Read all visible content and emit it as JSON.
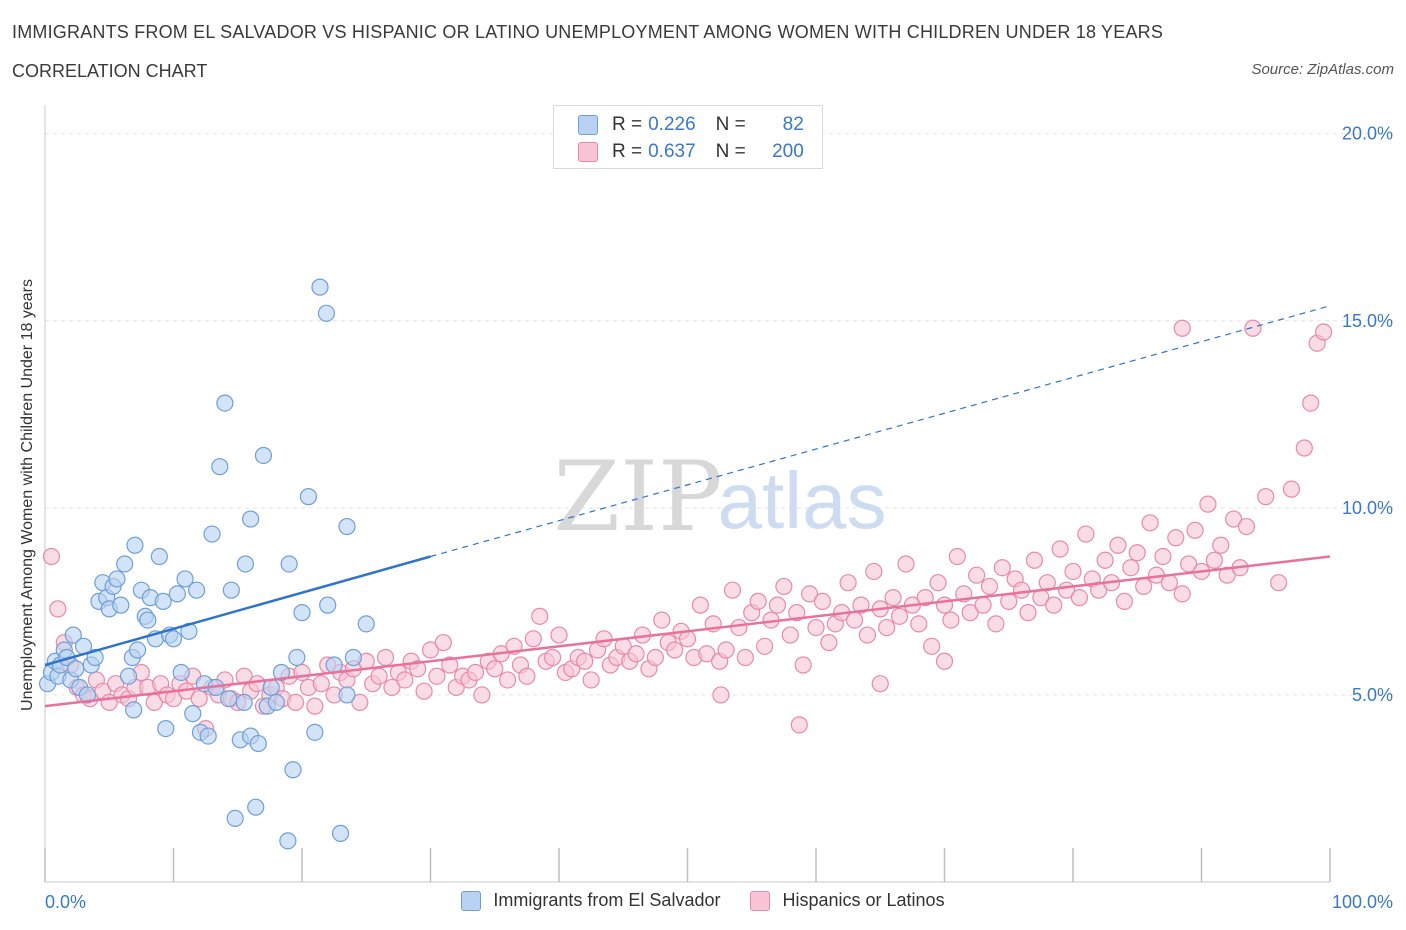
{
  "header": {
    "title": "IMMIGRANTS FROM EL SALVADOR VS HISPANIC OR LATINO UNEMPLOYMENT AMONG WOMEN WITH CHILDREN UNDER 18 YEARS",
    "subtitle": "CORRELATION CHART",
    "source": "Source: ZipAtlas.com"
  },
  "legend_top": {
    "rows": [
      {
        "r_label": "R =",
        "r_value": "0.226",
        "n_label": "N =",
        "n_value": "82"
      },
      {
        "r_label": "R =",
        "r_value": "0.637",
        "n_label": "N =",
        "n_value": "200"
      }
    ]
  },
  "watermark": {
    "zip": "ZIP",
    "atlas": "atlas"
  },
  "colors": {
    "blue_fill": "#b8d2f4",
    "blue_stroke": "#6f9fd8",
    "blue_line": "#2f74cc",
    "pink_fill": "#f7c5d5",
    "pink_stroke": "#e88aa8",
    "pink_line": "#e8729a",
    "tick_text": "#3a78c8",
    "grid": "#e3e3e3"
  },
  "chart_data": {
    "type": "scatter",
    "title": "IMMIGRANTS FROM EL SALVADOR VS HISPANIC OR LATINO UNEMPLOYMENT AMONG WOMEN WITH CHILDREN UNDER 18 YEARS",
    "subtitle": "CORRELATION CHART",
    "xlabel": "",
    "ylabel": "Unemployment Among Women with Children Under 18 years",
    "xlim": [
      0,
      100
    ],
    "ylim": [
      0,
      20.5
    ],
    "x_tick_labels": [
      "0.0%",
      "100.0%"
    ],
    "y_ticks": [
      5,
      10,
      15,
      20
    ],
    "y_tick_labels": [
      "5.0%",
      "10.0%",
      "15.0%",
      "20.0%"
    ],
    "grid": true,
    "legend_position": "bottom",
    "series": [
      {
        "name": "Immigrants from El Salvador",
        "R": 0.226,
        "N": 82,
        "trend": {
          "x0": 0,
          "y0": 5.8,
          "x1": 30,
          "y1": 8.7,
          "dashed_to_x": 100,
          "dashed_to_y": 15.4
        },
        "points": [
          [
            0.2,
            5.3
          ],
          [
            0.5,
            5.6
          ],
          [
            0.8,
            5.9
          ],
          [
            1.0,
            5.5
          ],
          [
            1.2,
            5.8
          ],
          [
            1.5,
            6.2
          ],
          [
            1.7,
            6.0
          ],
          [
            2.0,
            5.4
          ],
          [
            2.2,
            6.6
          ],
          [
            2.4,
            5.7
          ],
          [
            2.7,
            5.2
          ],
          [
            3.0,
            6.3
          ],
          [
            3.3,
            5.0
          ],
          [
            3.6,
            5.8
          ],
          [
            3.9,
            6.0
          ],
          [
            4.2,
            7.5
          ],
          [
            4.5,
            8.0
          ],
          [
            4.8,
            7.6
          ],
          [
            5.0,
            7.3
          ],
          [
            5.3,
            7.9
          ],
          [
            5.6,
            8.1
          ],
          [
            5.9,
            7.4
          ],
          [
            6.2,
            8.5
          ],
          [
            6.5,
            5.5
          ],
          [
            6.8,
            6.0
          ],
          [
            6.9,
            4.6
          ],
          [
            7.0,
            9.0
          ],
          [
            7.2,
            6.2
          ],
          [
            7.5,
            7.8
          ],
          [
            7.8,
            7.1
          ],
          [
            8.0,
            7.0
          ],
          [
            8.2,
            7.6
          ],
          [
            8.6,
            6.5
          ],
          [
            8.9,
            8.7
          ],
          [
            9.2,
            7.5
          ],
          [
            9.4,
            4.1
          ],
          [
            9.7,
            6.6
          ],
          [
            10.0,
            6.5
          ],
          [
            10.3,
            7.7
          ],
          [
            10.6,
            5.6
          ],
          [
            10.9,
            8.1
          ],
          [
            11.2,
            6.7
          ],
          [
            11.5,
            4.5
          ],
          [
            11.8,
            7.8
          ],
          [
            12.1,
            4.0
          ],
          [
            12.4,
            5.3
          ],
          [
            12.7,
            3.9
          ],
          [
            13.0,
            9.3
          ],
          [
            13.3,
            5.2
          ],
          [
            13.6,
            11.1
          ],
          [
            14.0,
            12.8
          ],
          [
            14.3,
            4.9
          ],
          [
            14.5,
            7.8
          ],
          [
            14.8,
            1.7
          ],
          [
            15.2,
            3.8
          ],
          [
            15.5,
            4.8
          ],
          [
            15.6,
            8.5
          ],
          [
            16.0,
            3.9
          ],
          [
            16.4,
            2.0
          ],
          [
            16.6,
            3.7
          ],
          [
            17.0,
            11.4
          ],
          [
            17.3,
            4.7
          ],
          [
            17.6,
            5.2
          ],
          [
            18.0,
            4.8
          ],
          [
            18.4,
            5.6
          ],
          [
            16.0,
            9.7
          ],
          [
            18.9,
            1.1
          ],
          [
            19.0,
            8.5
          ],
          [
            19.3,
            3.0
          ],
          [
            19.6,
            6.0
          ],
          [
            20.0,
            7.2
          ],
          [
            20.5,
            10.3
          ],
          [
            21.0,
            4.0
          ],
          [
            21.4,
            15.9
          ],
          [
            21.9,
            15.2
          ],
          [
            22.0,
            7.4
          ],
          [
            22.5,
            5.8
          ],
          [
            23.0,
            1.3
          ],
          [
            23.5,
            9.5
          ],
          [
            24.0,
            6.0
          ],
          [
            25.0,
            6.9
          ],
          [
            23.5,
            5.0
          ]
        ]
      },
      {
        "name": "Hispanics or Latinos",
        "R": 0.637,
        "N": 200,
        "trend": {
          "x0": 0,
          "y0": 4.7,
          "x1": 100,
          "y1": 8.7
        },
        "points": [
          [
            0.5,
            8.7
          ],
          [
            1.0,
            7.3
          ],
          [
            1.5,
            6.4
          ],
          [
            2.0,
            5.8
          ],
          [
            2.5,
            5.2
          ],
          [
            3.0,
            5.0
          ],
          [
            3.5,
            4.9
          ],
          [
            4.0,
            5.4
          ],
          [
            4.5,
            5.1
          ],
          [
            5.0,
            4.8
          ],
          [
            5.5,
            5.3
          ],
          [
            6.0,
            5.0
          ],
          [
            6.5,
            4.9
          ],
          [
            7.0,
            5.2
          ],
          [
            7.5,
            5.6
          ],
          [
            8.0,
            5.2
          ],
          [
            8.5,
            4.8
          ],
          [
            9.0,
            5.3
          ],
          [
            9.5,
            5.0
          ],
          [
            10.0,
            4.9
          ],
          [
            10.5,
            5.3
          ],
          [
            11.0,
            5.1
          ],
          [
            11.5,
            5.5
          ],
          [
            12.0,
            4.9
          ],
          [
            12.5,
            4.1
          ],
          [
            13.0,
            5.2
          ],
          [
            13.5,
            5.0
          ],
          [
            14.0,
            5.4
          ],
          [
            14.5,
            4.9
          ],
          [
            15.0,
            4.8
          ],
          [
            15.5,
            5.5
          ],
          [
            16.0,
            5.1
          ],
          [
            16.5,
            5.3
          ],
          [
            17.0,
            4.7
          ],
          [
            17.5,
            5.0
          ],
          [
            18.0,
            5.2
          ],
          [
            18.5,
            4.9
          ],
          [
            19.0,
            5.5
          ],
          [
            19.5,
            4.8
          ],
          [
            20.0,
            5.6
          ],
          [
            20.5,
            5.2
          ],
          [
            21.0,
            4.7
          ],
          [
            21.5,
            5.3
          ],
          [
            22.0,
            5.8
          ],
          [
            22.5,
            5.0
          ],
          [
            23.0,
            5.6
          ],
          [
            23.5,
            5.4
          ],
          [
            24.0,
            5.7
          ],
          [
            24.5,
            4.8
          ],
          [
            25.0,
            5.9
          ],
          [
            25.5,
            5.3
          ],
          [
            26.0,
            5.5
          ],
          [
            26.5,
            6.0
          ],
          [
            27.0,
            5.2
          ],
          [
            27.5,
            5.6
          ],
          [
            28.0,
            5.4
          ],
          [
            28.5,
            5.9
          ],
          [
            29.0,
            5.7
          ],
          [
            29.5,
            5.1
          ],
          [
            30.0,
            6.2
          ],
          [
            30.5,
            5.5
          ],
          [
            31.0,
            6.4
          ],
          [
            31.5,
            5.8
          ],
          [
            32.0,
            5.2
          ],
          [
            32.5,
            5.5
          ],
          [
            33.0,
            5.4
          ],
          [
            33.5,
            5.6
          ],
          [
            34.0,
            5.0
          ],
          [
            34.5,
            5.9
          ],
          [
            35.0,
            5.7
          ],
          [
            35.5,
            6.1
          ],
          [
            36.0,
            5.4
          ],
          [
            36.5,
            6.3
          ],
          [
            37.0,
            5.8
          ],
          [
            37.5,
            5.5
          ],
          [
            38.0,
            6.5
          ],
          [
            38.5,
            7.1
          ],
          [
            39.0,
            5.9
          ],
          [
            39.5,
            6.0
          ],
          [
            40.0,
            6.6
          ],
          [
            40.5,
            5.6
          ],
          [
            41.0,
            5.7
          ],
          [
            41.5,
            6.0
          ],
          [
            42.0,
            5.9
          ],
          [
            42.5,
            5.4
          ],
          [
            43.0,
            6.2
          ],
          [
            43.5,
            6.5
          ],
          [
            44.0,
            5.8
          ],
          [
            44.5,
            6.0
          ],
          [
            45.0,
            6.3
          ],
          [
            45.5,
            5.9
          ],
          [
            46.0,
            6.1
          ],
          [
            46.5,
            6.6
          ],
          [
            47.0,
            5.7
          ],
          [
            47.5,
            6.0
          ],
          [
            48.0,
            7.0
          ],
          [
            48.5,
            6.4
          ],
          [
            49.0,
            6.2
          ],
          [
            49.5,
            6.7
          ],
          [
            50.0,
            6.5
          ],
          [
            50.5,
            6.0
          ],
          [
            51.0,
            7.4
          ],
          [
            51.5,
            6.1
          ],
          [
            52.0,
            6.9
          ],
          [
            52.5,
            5.9
          ],
          [
            53.0,
            6.2
          ],
          [
            53.5,
            7.8
          ],
          [
            54.0,
            6.8
          ],
          [
            54.5,
            6.0
          ],
          [
            55.0,
            7.2
          ],
          [
            55.5,
            7.5
          ],
          [
            56.0,
            6.3
          ],
          [
            56.5,
            7.0
          ],
          [
            57.0,
            7.4
          ],
          [
            57.5,
            7.9
          ],
          [
            58.0,
            6.6
          ],
          [
            58.5,
            7.2
          ],
          [
            59.0,
            5.8
          ],
          [
            59.5,
            7.7
          ],
          [
            60.0,
            6.8
          ],
          [
            60.5,
            7.5
          ],
          [
            61.0,
            6.4
          ],
          [
            61.5,
            6.9
          ],
          [
            62.0,
            7.2
          ],
          [
            62.5,
            8.0
          ],
          [
            63.0,
            7.0
          ],
          [
            63.5,
            7.4
          ],
          [
            64.0,
            6.6
          ],
          [
            64.5,
            8.3
          ],
          [
            65.0,
            7.3
          ],
          [
            65.5,
            6.8
          ],
          [
            66.0,
            7.6
          ],
          [
            66.5,
            7.1
          ],
          [
            67.0,
            8.5
          ],
          [
            67.5,
            7.4
          ],
          [
            68.0,
            6.9
          ],
          [
            68.5,
            7.6
          ],
          [
            69.0,
            6.3
          ],
          [
            69.5,
            8.0
          ],
          [
            70.0,
            7.4
          ],
          [
            70.5,
            7.0
          ],
          [
            71.0,
            8.7
          ],
          [
            71.5,
            7.7
          ],
          [
            72.0,
            7.2
          ],
          [
            72.5,
            8.2
          ],
          [
            73.0,
            7.4
          ],
          [
            73.5,
            7.9
          ],
          [
            74.0,
            6.9
          ],
          [
            74.5,
            8.4
          ],
          [
            75.0,
            7.5
          ],
          [
            75.5,
            8.1
          ],
          [
            76.0,
            7.8
          ],
          [
            76.5,
            7.2
          ],
          [
            77.0,
            8.6
          ],
          [
            77.5,
            7.6
          ],
          [
            78.0,
            8.0
          ],
          [
            78.5,
            7.4
          ],
          [
            79.0,
            8.9
          ],
          [
            79.5,
            7.8
          ],
          [
            80.0,
            8.3
          ],
          [
            80.5,
            7.6
          ],
          [
            81.0,
            9.3
          ],
          [
            81.5,
            8.1
          ],
          [
            82.0,
            7.8
          ],
          [
            82.5,
            8.6
          ],
          [
            83.0,
            8.0
          ],
          [
            83.5,
            9.0
          ],
          [
            84.0,
            7.5
          ],
          [
            84.5,
            8.4
          ],
          [
            85.0,
            8.8
          ],
          [
            85.5,
            7.9
          ],
          [
            86.0,
            9.6
          ],
          [
            86.5,
            8.2
          ],
          [
            87.0,
            8.7
          ],
          [
            87.5,
            8.0
          ],
          [
            88.0,
            9.2
          ],
          [
            88.5,
            7.7
          ],
          [
            89.0,
            8.5
          ],
          [
            89.5,
            9.4
          ],
          [
            90.0,
            8.3
          ],
          [
            90.5,
            10.1
          ],
          [
            91.0,
            8.6
          ],
          [
            91.5,
            9.0
          ],
          [
            92.0,
            8.2
          ],
          [
            92.5,
            9.7
          ],
          [
            93.0,
            8.4
          ],
          [
            93.5,
            9.5
          ],
          [
            94.0,
            14.8
          ],
          [
            95.0,
            10.3
          ],
          [
            96.0,
            8.0
          ],
          [
            97.0,
            10.5
          ],
          [
            98.0,
            11.6
          ],
          [
            99.0,
            14.4
          ],
          [
            99.5,
            14.7
          ],
          [
            98.5,
            12.8
          ],
          [
            88.5,
            14.8
          ],
          [
            58.7,
            4.2
          ],
          [
            52.6,
            5.0
          ],
          [
            65.0,
            5.3
          ],
          [
            70.0,
            5.9
          ]
        ]
      }
    ]
  },
  "legend_bottom": {
    "items": [
      {
        "label": "Immigrants from El Salvador"
      },
      {
        "label": "Hispanics or Latinos"
      }
    ]
  }
}
